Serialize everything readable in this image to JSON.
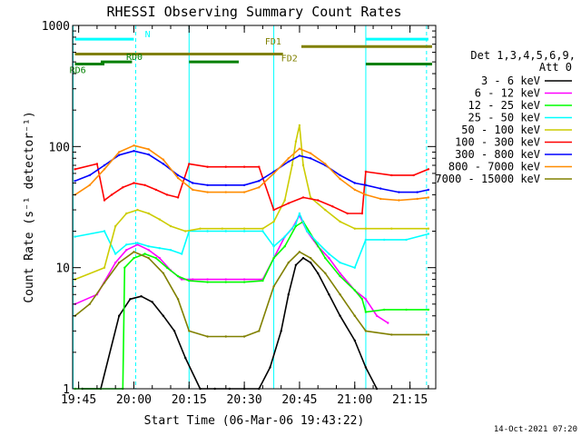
{
  "chart_data": {
    "type": "line",
    "title": "RHESSI Observing Summary Count Rates",
    "xlabel": "Start Time (06-Mar-06 19:43:22)",
    "ylabel": "Count Rate (s⁻¹ detector⁻¹)",
    "y_scale": "log",
    "ylim": [
      1,
      1000
    ],
    "xlim": [
      "19:43:22",
      "21:22:00"
    ],
    "x_tick_labels": [
      "19:45",
      "20:00",
      "20:15",
      "20:30",
      "20:45",
      "21:00",
      "21:15"
    ],
    "y_tick_labels": [
      "1",
      "10",
      "100",
      "1000"
    ],
    "detectors_label": "Det 1,3,4,5,6,9,",
    "attenuator_label": "Att 0",
    "timestamp": "14-Oct-2021 07:20",
    "legend_position": "right",
    "grid": false,
    "vertical_markers": [
      {
        "time": "19:43:30",
        "style": "solid",
        "color": "#00ffff"
      },
      {
        "time": "20:00:30",
        "style": "dashed",
        "color": "#00ffff"
      },
      {
        "time": "20:15:00",
        "style": "solid",
        "color": "#00ffff"
      },
      {
        "time": "20:38:00",
        "style": "solid",
        "color": "#00ffff"
      },
      {
        "time": "21:03:00",
        "style": "solid",
        "color": "#00ffff"
      },
      {
        "time": "21:19:30",
        "style": "dashed",
        "color": "#00ffff"
      }
    ],
    "flag_bars": [
      {
        "label": "N",
        "color": "#00ffff",
        "y": 770,
        "segments": [
          [
            "19:44:00",
            "20:00:00"
          ],
          [
            "21:03:00",
            "21:20:00"
          ]
        ]
      },
      {
        "label": "FD1",
        "color": "#808000",
        "y": 670,
        "segments": [
          [
            "20:45:30",
            "21:21:00"
          ]
        ]
      },
      {
        "label": "FD2",
        "color": "#808000",
        "y": 580,
        "segments": [
          [
            "19:44:00",
            "20:40:30"
          ]
        ]
      },
      {
        "label": "RD0",
        "color": "#008000",
        "y": 500,
        "segments": [
          [
            "19:51:00",
            "19:59:30"
          ],
          [
            "20:15:00",
            "20:28:30"
          ]
        ]
      },
      {
        "label": "RD6",
        "color": "#008000",
        "y": 480,
        "segments": [
          [
            "19:44:00",
            "19:52:00"
          ],
          [
            "21:03:00",
            "21:21:00"
          ]
        ]
      }
    ],
    "series": [
      {
        "name": "3 - 6 keV",
        "color": "#000000",
        "x": [
          "19:46",
          "19:51",
          "19:56",
          "19:59",
          "20:02",
          "20:05",
          "20:08",
          "20:11",
          "20:14",
          "20:18",
          "20:22",
          "20:26",
          "20:30",
          "20:34",
          "20:37",
          "20:40",
          "20:42",
          "20:44",
          "20:46",
          "20:48",
          "20:50",
          "20:53",
          "20:56",
          "21:00",
          "21:03",
          "21:06"
        ],
        "y": [
          1,
          1,
          4,
          5.5,
          5.8,
          5.2,
          4,
          3,
          1.8,
          1,
          1,
          1,
          1,
          1,
          1.5,
          3,
          6,
          10.5,
          12,
          11,
          9,
          6,
          4,
          2.5,
          1.5,
          1
        ]
      },
      {
        "name": "6 - 12 keV",
        "color": "#ff00ff",
        "x": [
          "19:44",
          "19:50",
          "19:55",
          "19:58",
          "20:01",
          "20:04",
          "20:07",
          "20:10",
          "20:13",
          "20:16",
          "20:20",
          "20:25",
          "20:30",
          "20:35",
          "20:38",
          "20:41",
          "20:43",
          "20:45",
          "20:47",
          "20:50",
          "20:53",
          "20:56",
          "21:00",
          "21:03",
          "21:06",
          "21:09"
        ],
        "y": [
          5,
          6,
          11,
          14,
          15.5,
          14,
          12,
          9.5,
          8,
          8,
          8,
          8,
          8,
          8,
          12,
          18,
          21,
          27,
          20,
          15,
          12,
          9,
          6.5,
          5.5,
          4,
          3.5
        ]
      },
      {
        "name": "12 - 25 keV",
        "color": "#00ff00",
        "x": [
          "19:44",
          "19:57",
          "19:57:30",
          "20:00",
          "20:03",
          "20:06",
          "20:09",
          "20:12",
          "20:15",
          "20:20",
          "20:25",
          "20:30",
          "20:35",
          "20:38",
          "20:41",
          "20:44",
          "20:46",
          "20:49",
          "20:52",
          "20:56",
          "21:00",
          "21:02",
          "21:03",
          "21:08",
          "21:14",
          "21:20"
        ],
        "y": [
          1,
          1,
          10,
          12,
          13,
          12,
          10,
          8.5,
          7.8,
          7.6,
          7.6,
          7.6,
          7.8,
          12,
          15,
          22,
          24,
          17,
          12,
          8.5,
          6.5,
          5.5,
          4.3,
          4.5,
          4.5,
          4.5
        ]
      },
      {
        "name": "25 - 50 keV",
        "color": "#00ffff",
        "x": [
          "19:44",
          "19:52",
          "19:55",
          "19:58",
          "20:01",
          "20:04",
          "20:07",
          "20:10",
          "20:13",
          "20:15",
          "20:20",
          "20:25",
          "20:30",
          "20:35",
          "20:38",
          "20:41",
          "20:44",
          "20:45",
          "20:47",
          "20:50",
          "20:53",
          "20:56",
          "21:00",
          "21:03",
          "21:08",
          "21:14",
          "21:20"
        ],
        "y": [
          18,
          20,
          13,
          15.5,
          16,
          15,
          14.5,
          14,
          13,
          20,
          20,
          20,
          20,
          20,
          15,
          18,
          23,
          28,
          20,
          16,
          13,
          11,
          10,
          17,
          17,
          17,
          19
        ]
      },
      {
        "name": "50 - 100 keV",
        "color": "#cccc00",
        "x": [
          "19:44",
          "19:52",
          "19:55",
          "19:58",
          "20:01",
          "20:04",
          "20:07",
          "20:10",
          "20:14",
          "20:18",
          "20:24",
          "20:30",
          "20:35",
          "20:38",
          "20:41",
          "20:43",
          "20:44",
          "20:45",
          "20:46",
          "20:48",
          "20:52",
          "20:56",
          "21:00",
          "21:03",
          "21:10",
          "21:20"
        ],
        "y": [
          8,
          10,
          22,
          28,
          30,
          28,
          25,
          22,
          20,
          21,
          21,
          21,
          21,
          24,
          36,
          70,
          110,
          150,
          70,
          38,
          30,
          24,
          21,
          21,
          21,
          21
        ]
      },
      {
        "name": "100 - 300 keV",
        "color": "#ff0000",
        "x": [
          "19:44",
          "19:50",
          "19:52",
          "19:54",
          "19:57",
          "20:00",
          "20:03",
          "20:06",
          "20:09",
          "20:12",
          "20:15",
          "20:20",
          "20:25",
          "20:30",
          "20:34",
          "20:38",
          "20:42",
          "20:46",
          "20:50",
          "20:54",
          "20:58",
          "21:02",
          "21:03",
          "21:10",
          "21:16",
          "21:20"
        ],
        "y": [
          65,
          72,
          36,
          40,
          46,
          50,
          48,
          44,
          40,
          38,
          72,
          68,
          68,
          68,
          68,
          30,
          34,
          38,
          36,
          32,
          28,
          28,
          62,
          58,
          58,
          65
        ]
      },
      {
        "name": "300 - 800 keV",
        "color": "#0000ff",
        "x": [
          "19:44",
          "19:48",
          "19:52",
          "19:56",
          "20:00",
          "20:04",
          "20:08",
          "20:12",
          "20:16",
          "20:20",
          "20:25",
          "20:30",
          "20:34",
          "20:38",
          "20:42",
          "20:45",
          "20:48",
          "20:52",
          "20:56",
          "21:00",
          "21:03",
          "21:07",
          "21:12",
          "21:17",
          "21:20"
        ],
        "y": [
          52,
          58,
          70,
          85,
          92,
          86,
          72,
          58,
          50,
          48,
          48,
          48,
          52,
          62,
          75,
          84,
          80,
          70,
          58,
          50,
          48,
          45,
          42,
          42,
          44
        ]
      },
      {
        "name": "800 - 7000 keV",
        "color": "#ff8c00",
        "x": [
          "19:44",
          "19:48",
          "19:52",
          "19:56",
          "20:00",
          "20:04",
          "20:08",
          "20:12",
          "20:16",
          "20:20",
          "20:25",
          "20:30",
          "20:34",
          "20:38",
          "20:42",
          "20:45",
          "20:48",
          "20:52",
          "20:56",
          "21:00",
          "21:03",
          "21:07",
          "21:12",
          "21:17",
          "21:20"
        ],
        "y": [
          40,
          48,
          65,
          90,
          102,
          95,
          78,
          55,
          44,
          42,
          42,
          42,
          46,
          60,
          80,
          96,
          88,
          72,
          54,
          44,
          40,
          37,
          36,
          37,
          38
        ]
      },
      {
        "name": "7000 - 15000 keV",
        "color": "#808000",
        "x": [
          "19:44",
          "19:48",
          "19:52",
          "19:56",
          "20:00",
          "20:04",
          "20:08",
          "20:12",
          "20:15",
          "20:20",
          "20:25",
          "20:30",
          "20:34",
          "20:38",
          "20:42",
          "20:45",
          "20:48",
          "20:52",
          "20:56",
          "21:00",
          "21:03",
          "21:10",
          "21:20"
        ],
        "y": [
          4,
          5,
          7.5,
          11,
          13.5,
          12,
          9,
          5.5,
          3,
          2.7,
          2.7,
          2.7,
          3,
          7,
          11,
          13.5,
          12,
          9,
          6,
          4,
          3,
          2.8,
          2.8
        ]
      }
    ]
  }
}
